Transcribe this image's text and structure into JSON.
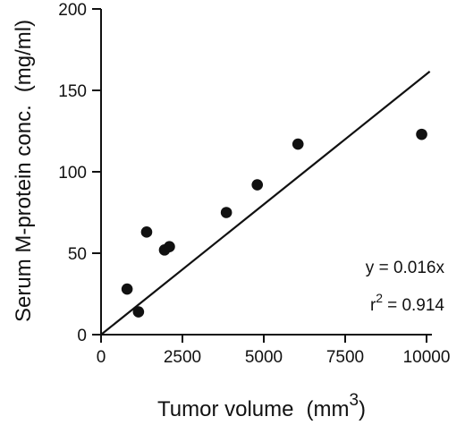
{
  "chart_data": {
    "type": "scatter",
    "title": "",
    "xlabel": "Tumor volume",
    "xlabel_unit_base": "(mm",
    "xlabel_unit_exp": "3",
    "xlabel_unit_close": ")",
    "ylabel": "Serum M-protein conc.",
    "ylabel_unit": "(mg/ml)",
    "xlim": [
      0,
      10000
    ],
    "ylim": [
      0,
      200
    ],
    "xticks": [
      0,
      2500,
      5000,
      7500,
      10000
    ],
    "yticks": [
      0,
      50,
      100,
      150,
      200
    ],
    "grid": false,
    "points": [
      {
        "x": 800,
        "y": 28
      },
      {
        "x": 1150,
        "y": 14
      },
      {
        "x": 1400,
        "y": 63
      },
      {
        "x": 1950,
        "y": 52
      },
      {
        "x": 2100,
        "y": 54
      },
      {
        "x": 3850,
        "y": 75
      },
      {
        "x": 4800,
        "y": 92
      },
      {
        "x": 6050,
        "y": 117
      },
      {
        "x": 9850,
        "y": 123
      }
    ],
    "fit_line": {
      "slope": 0.016,
      "intercept": 0,
      "x_range": [
        0,
        10100
      ]
    },
    "equation": "y = 0.016x",
    "r2_base": "r",
    "r2_exp": "2",
    "r2_value": "= 0.914",
    "marker_color": "#111111",
    "line_color": "#111111"
  }
}
